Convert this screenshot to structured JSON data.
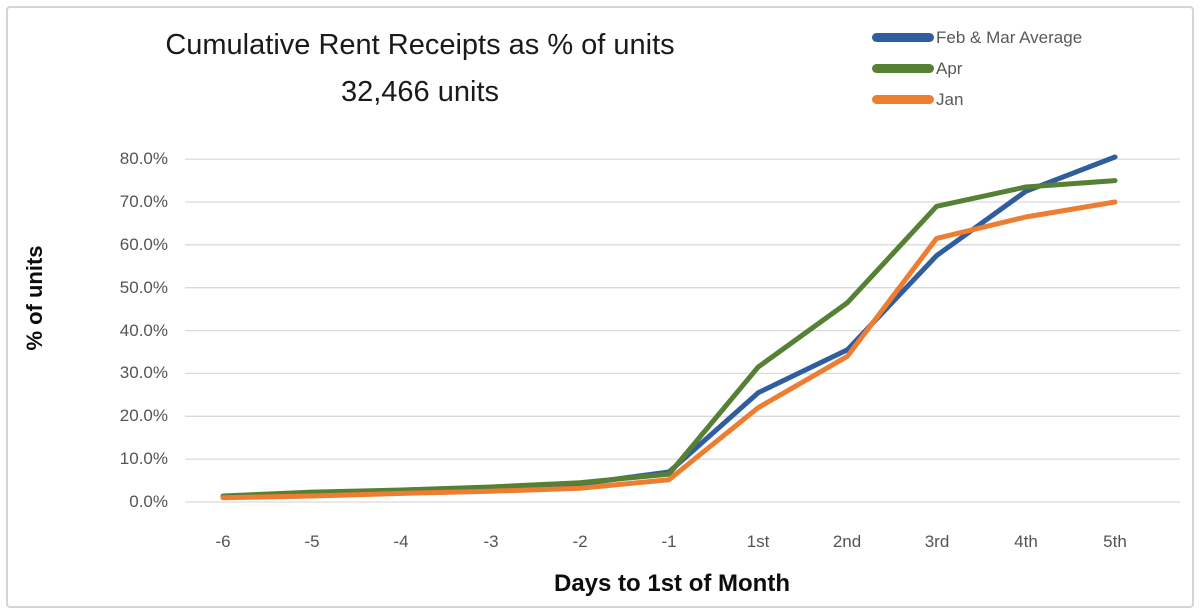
{
  "chart_data": {
    "type": "line",
    "title": "Cumulative Rent Receipts as % of units",
    "subtitle": "32,466 units",
    "xlabel": "Days to 1st of Month",
    "ylabel": "% of units",
    "categories": [
      "-6",
      "-5",
      "-4",
      "-3",
      "-2",
      "-1",
      "1st",
      "2nd",
      "3rd",
      "4th",
      "5th"
    ],
    "series": [
      {
        "name": "Feb & Mar Average",
        "color": "#2f5d9e",
        "values": [
          1.2,
          1.9,
          2.5,
          3.2,
          4.2,
          7.0,
          25.5,
          35.5,
          57.5,
          72.5,
          80.5
        ]
      },
      {
        "name": "Apr",
        "color": "#568135",
        "values": [
          1.4,
          2.3,
          2.8,
          3.5,
          4.5,
          6.5,
          31.5,
          46.5,
          69.0,
          73.5,
          75.0
        ]
      },
      {
        "name": "Jan",
        "color": "#ed7d31",
        "values": [
          1.0,
          1.4,
          2.0,
          2.5,
          3.2,
          5.2,
          22.0,
          34.0,
          61.5,
          66.5,
          70.0
        ]
      }
    ],
    "y_ticks": [
      "80.0%",
      "70.0%",
      "60.0%",
      "50.0%",
      "40.0%",
      "30.0%",
      "20.0%",
      "10.0%",
      "0.0%"
    ],
    "ylim": [
      0,
      80
    ],
    "y_step": 10,
    "grid": true,
    "grid_color": "#d9d9d9",
    "legend_position": "top-right"
  }
}
